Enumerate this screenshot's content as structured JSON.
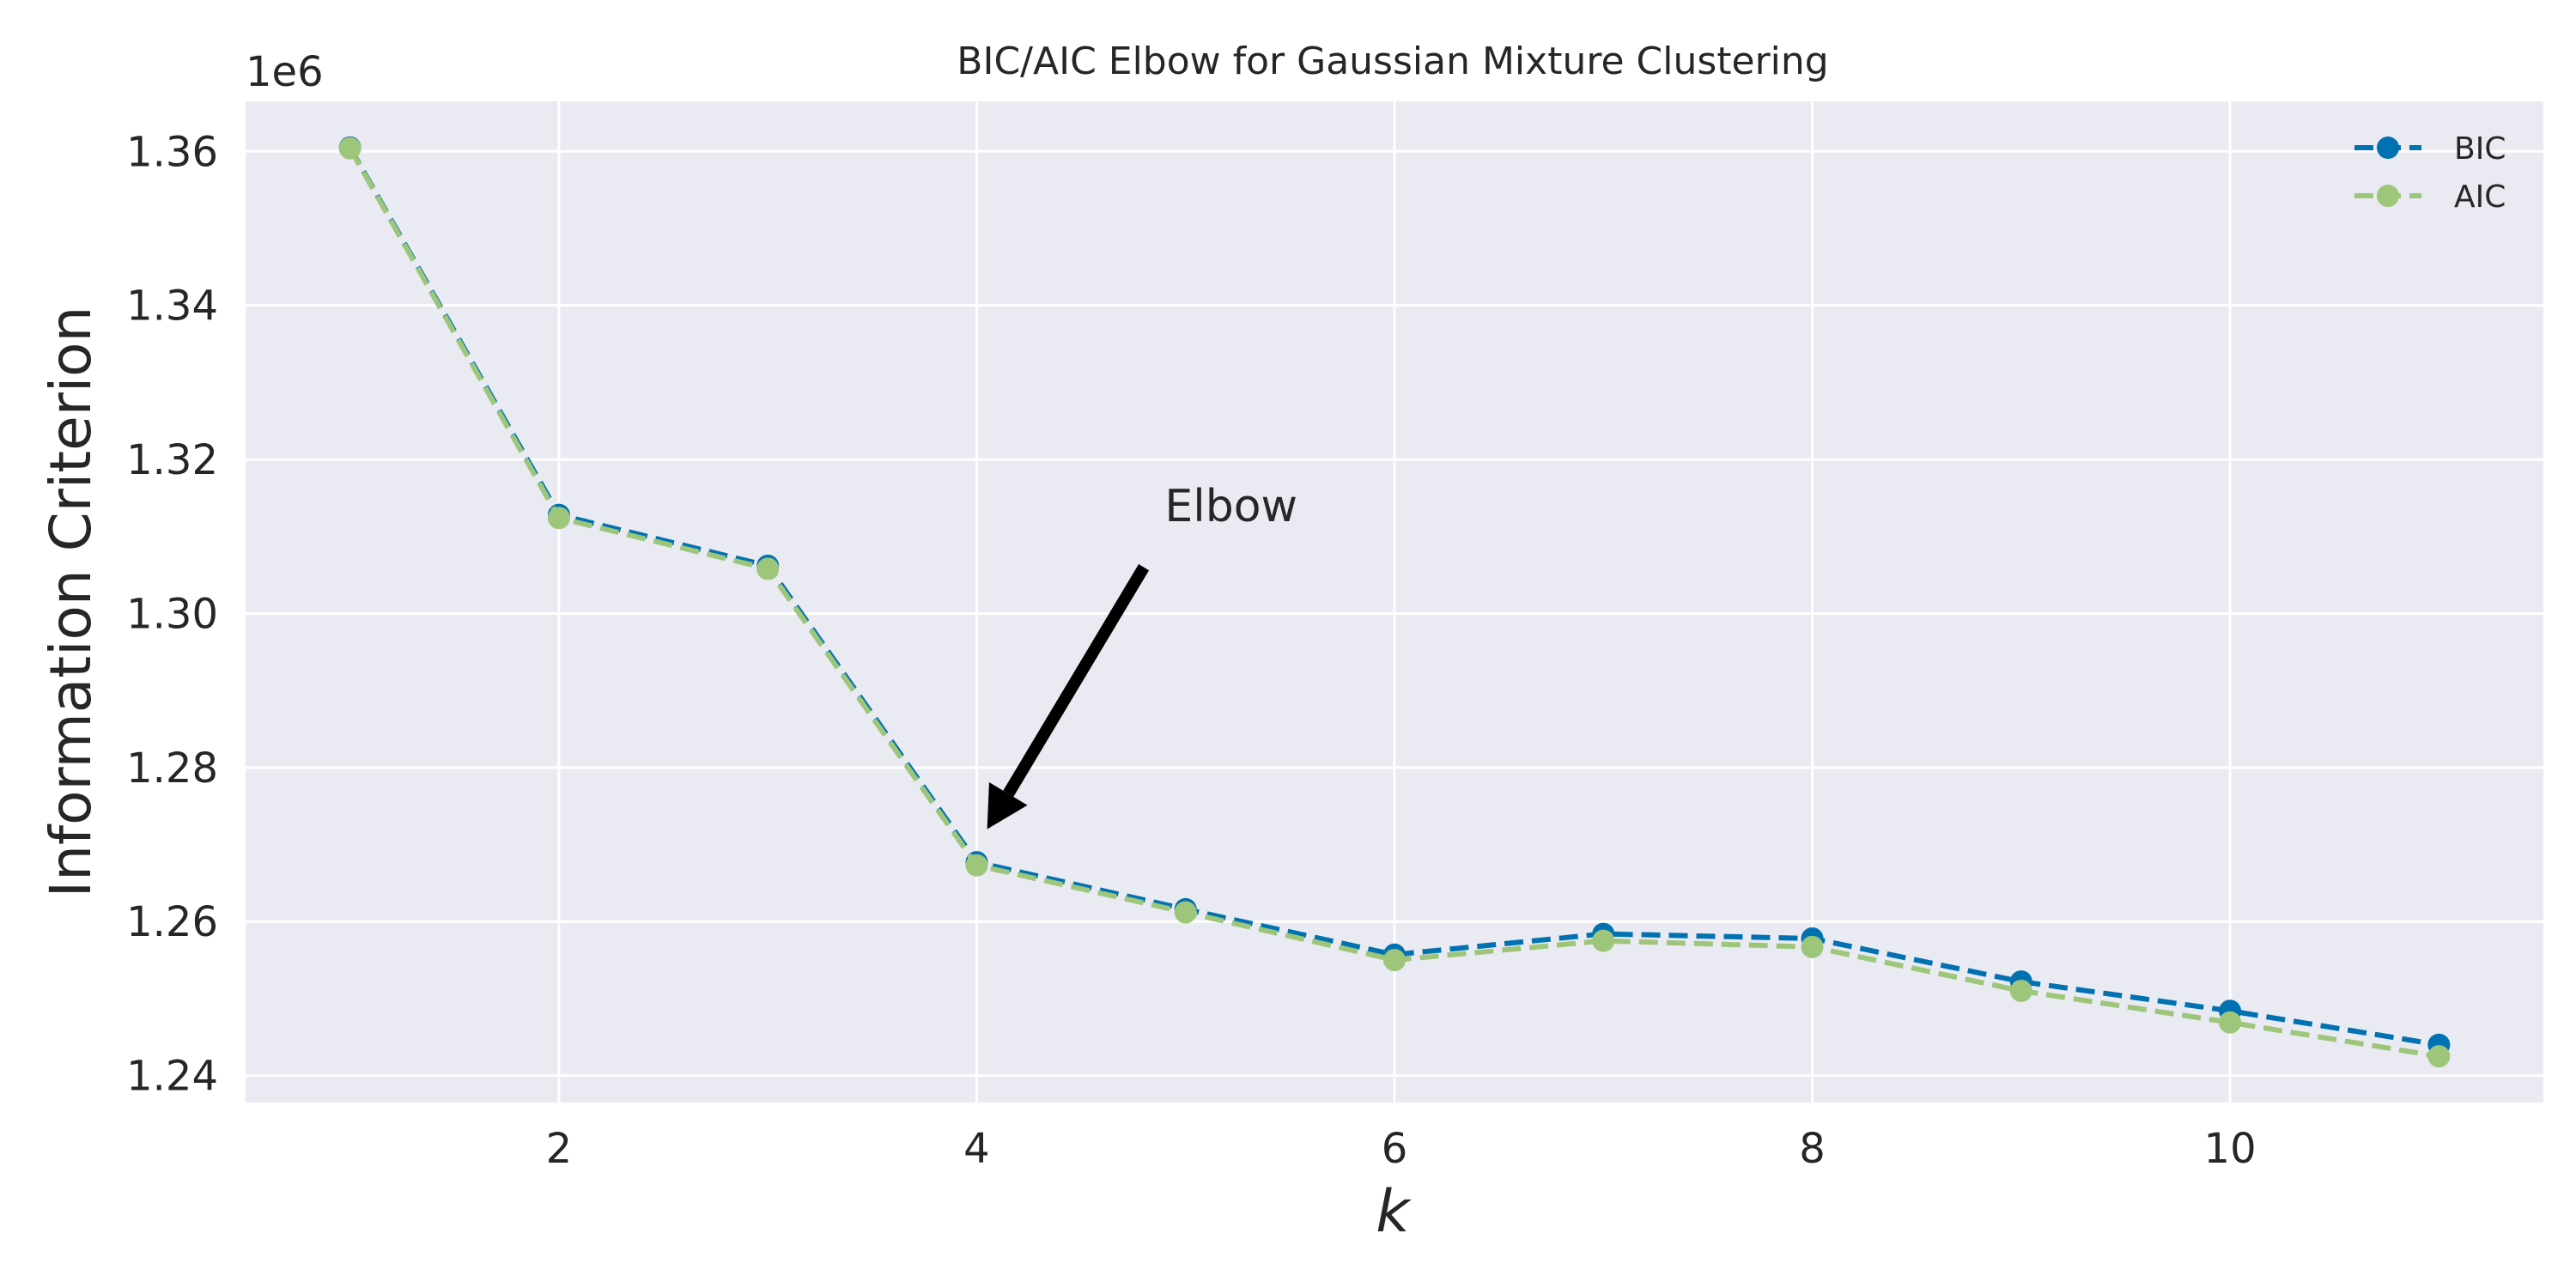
{
  "chart_data": {
    "type": "line",
    "title": "BIC/AIC Elbow for Gaussian Mixture Clustering",
    "xlabel": "k",
    "ylabel": "Information Criterion",
    "y_offset_label": "1e6",
    "x": [
      1,
      2,
      3,
      4,
      5,
      6,
      7,
      8,
      9,
      10,
      11
    ],
    "series": [
      {
        "name": "BIC",
        "color": "#0072B2",
        "values": [
          1.3605,
          1.3128,
          1.3062,
          1.2677,
          1.2616,
          1.2557,
          1.2584,
          1.2578,
          1.2522,
          1.2484,
          1.244
        ]
      },
      {
        "name": "AIC",
        "color": "#9DC67B",
        "values": [
          1.3604,
          1.3124,
          1.3058,
          1.2673,
          1.2612,
          1.255,
          1.2575,
          1.2567,
          1.251,
          1.2469,
          1.2425
        ]
      }
    ],
    "xlim": [
      0.5,
      11.5
    ],
    "ylim": [
      1.2365,
      1.3665
    ],
    "xticks": [
      2,
      4,
      6,
      8,
      10
    ],
    "yticks": [
      1.24,
      1.26,
      1.28,
      1.3,
      1.32,
      1.34,
      1.36
    ],
    "ytick_labels": [
      "1.24",
      "1.26",
      "1.28",
      "1.30",
      "1.32",
      "1.34",
      "1.36"
    ],
    "grid": true,
    "legend_position": "top-right",
    "annotation": {
      "text": "Elbow",
      "text_at": [
        4.9,
        1.312
      ],
      "arrow_tail": [
        4.8,
        1.306
      ],
      "arrow_head": [
        4.05,
        1.272
      ]
    },
    "style": {
      "plot_background": "#EAEAF2",
      "grid_color": "#FFFFFF"
    }
  }
}
